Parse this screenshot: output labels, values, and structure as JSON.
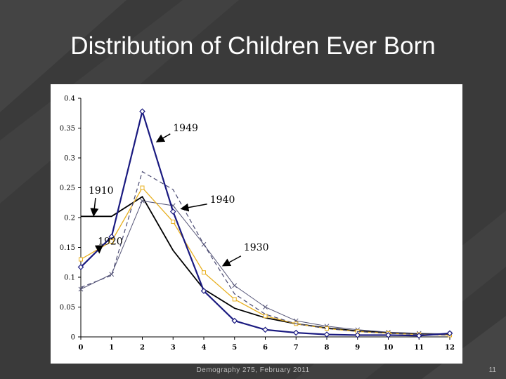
{
  "slide": {
    "title": "Distribution of Children Ever Born",
    "footer": "Demography 275, February 2011",
    "page_number": "11"
  },
  "colors": {
    "background": "#3a3a3a",
    "series_1910": "#000000",
    "series_1920": "#555577",
    "series_1930": "#e8b020",
    "series_1940": "#4a4a72",
    "series_1949": "#1a1a80"
  },
  "chart_data": {
    "type": "line",
    "title": "",
    "xlabel": "",
    "ylabel": "",
    "x": [
      0,
      1,
      2,
      3,
      4,
      5,
      6,
      7,
      8,
      9,
      10,
      11,
      12
    ],
    "xlim": [
      0,
      12
    ],
    "ylim": [
      0,
      0.4
    ],
    "x_ticks": [
      "0",
      "1",
      "2",
      "3",
      "4",
      "5",
      "6",
      "7",
      "8",
      "9",
      "10",
      "11",
      "12"
    ],
    "y_ticks": [
      "0",
      "0.05",
      "0.1",
      "0.15",
      "0.2",
      "0.25",
      "0.3",
      "0.35",
      "0.4"
    ],
    "y_tick_values": [
      0,
      0.05,
      0.1,
      0.15,
      0.2,
      0.25,
      0.3,
      0.35,
      0.4
    ],
    "grid": false,
    "legend": "none",
    "series": [
      {
        "name": "1910",
        "marker": "none",
        "dash": "solid",
        "values": [
          0.202,
          0.202,
          0.235,
          0.145,
          0.08,
          0.048,
          0.032,
          0.022,
          0.015,
          0.01,
          0.007,
          0.005,
          0.004
        ]
      },
      {
        "name": "1920",
        "marker": "x",
        "dash": "solid",
        "values": [
          0.08,
          0.105,
          0.228,
          0.22,
          0.155,
          0.086,
          0.05,
          0.027,
          0.018,
          0.012,
          0.008,
          0.006,
          0.005
        ]
      },
      {
        "name": "1930",
        "marker": "square",
        "dash": "solid",
        "values": [
          0.13,
          0.16,
          0.25,
          0.193,
          0.108,
          0.063,
          0.035,
          0.022,
          0.014,
          0.009,
          0.006,
          0.004,
          0.003
        ]
      },
      {
        "name": "1940",
        "marker": "none",
        "dash": "dashed",
        "values": [
          0.083,
          0.103,
          0.277,
          0.247,
          0.155,
          0.072,
          0.038,
          0.022,
          0.014,
          0.009,
          0.006,
          0.004,
          0.003
        ]
      },
      {
        "name": "1949",
        "marker": "diamond",
        "dash": "solid",
        "values": [
          0.117,
          0.168,
          0.378,
          0.21,
          0.077,
          0.027,
          0.012,
          0.007,
          0.004,
          0.003,
          0.003,
          0.002,
          0.006
        ]
      }
    ],
    "annotations": [
      {
        "text": "1949",
        "series": "1949",
        "label_at": [
          3.0,
          0.345
        ],
        "arrow_to": [
          2.5,
          0.328
        ]
      },
      {
        "text": "1910",
        "series": "1910",
        "label_at": [
          0.25,
          0.24
        ],
        "arrow_to": [
          0.42,
          0.205
        ]
      },
      {
        "text": "1940",
        "series": "1940",
        "label_at": [
          4.2,
          0.225
        ],
        "arrow_to": [
          3.3,
          0.215
        ]
      },
      {
        "text": "1920",
        "series": "1920",
        "label_at": [
          0.55,
          0.155
        ],
        "arrow_to": [
          0.6,
          0.143
        ]
      },
      {
        "text": "1930",
        "series": "1930",
        "label_at": [
          5.3,
          0.145
        ],
        "arrow_to": [
          4.65,
          0.12
        ]
      }
    ]
  }
}
